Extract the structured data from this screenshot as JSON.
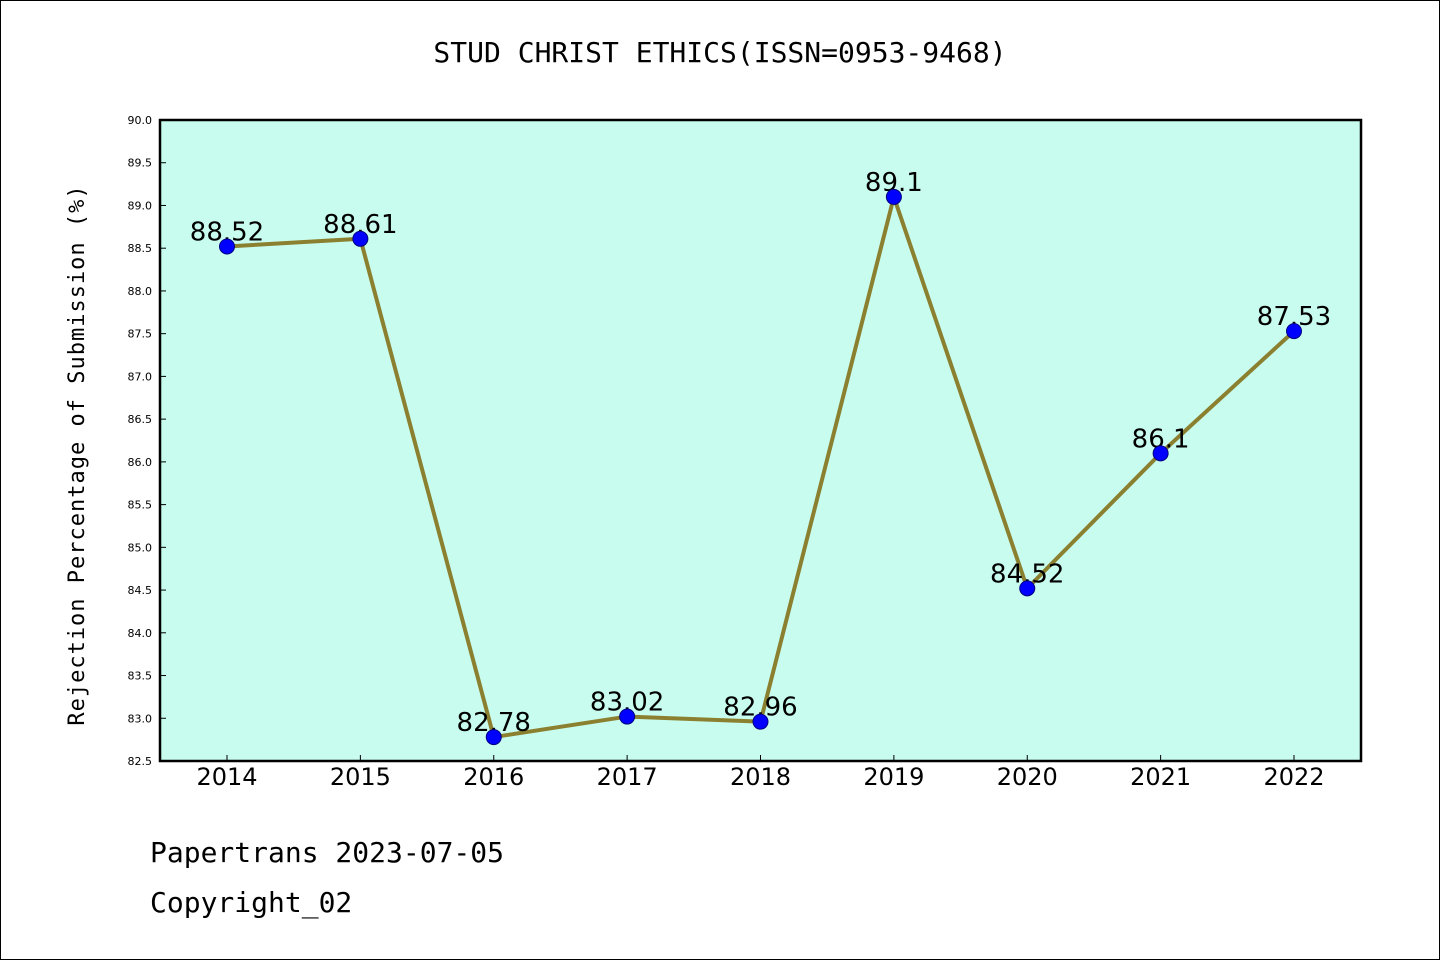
{
  "chart_data": {
    "type": "line",
    "title": "STUD CHRIST ETHICS(ISSN=0953-9468)",
    "xlabel": "",
    "ylabel": "Rejection Percentage of Submission (%)",
    "categories": [
      "2014",
      "2015",
      "2016",
      "2017",
      "2018",
      "2019",
      "2020",
      "2021",
      "2022"
    ],
    "series": [
      {
        "values": [
          88.52,
          88.61,
          82.78,
          83.02,
          82.96,
          89.1,
          84.52,
          86.1,
          87.53
        ],
        "labels": [
          "88.52",
          "88.61",
          "82.78",
          "83.02",
          "82.96",
          "89.1",
          "84.52",
          "86.1",
          "87.53"
        ]
      }
    ],
    "ylim": [
      82.5,
      90.0
    ],
    "yticks": [
      "82.5",
      "83.0",
      "83.5",
      "84.0",
      "84.5",
      "85.0",
      "85.5",
      "86.0",
      "86.5",
      "87.0",
      "87.5",
      "88.0",
      "88.5",
      "89.0",
      "89.5",
      "90.0"
    ],
    "grid": false,
    "legend": "none",
    "colors": {
      "plot_background": "#c8fcee",
      "line": "#8b8030",
      "marker": "#0000ff",
      "marker_edge": "#000080"
    }
  },
  "footer": {
    "line1": "Papertrans 2023-07-05",
    "line2": "Copyright_02"
  }
}
